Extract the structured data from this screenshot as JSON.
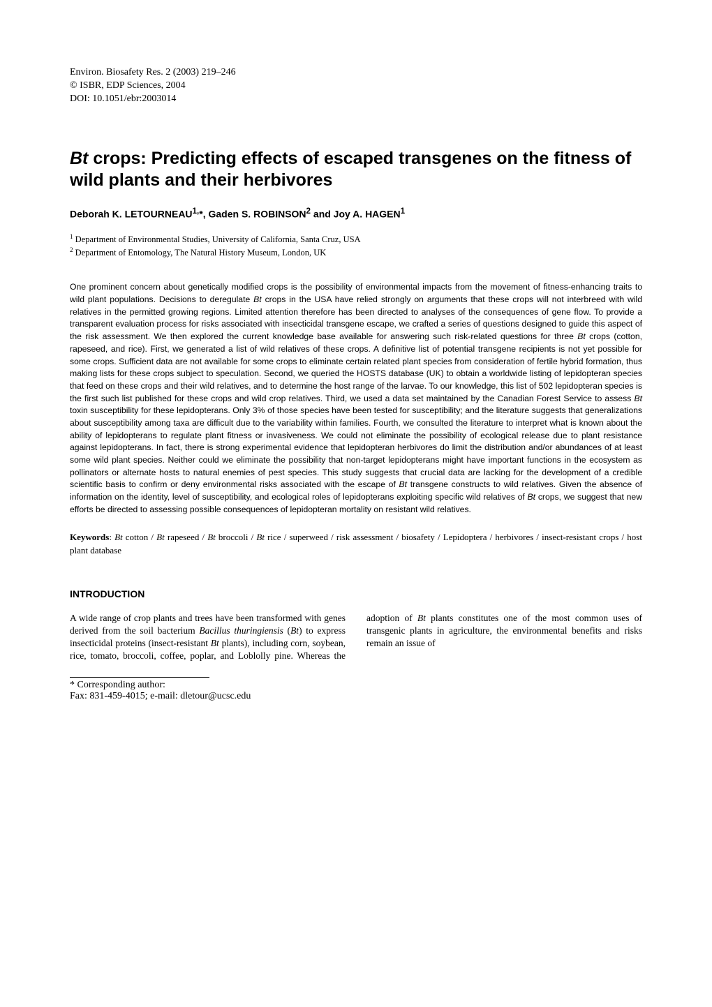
{
  "journal": {
    "line1": "Environ. Biosafety Res. 2 (2003) 219–246",
    "line2": "© ISBR, EDP Sciences, 2004",
    "line3": "DOI: 10.1051/ebr:2003014"
  },
  "title_html": "<em>Bt</em> crops: Predicting effects of escaped transgenes on the fitness of wild plants and their herbivores",
  "authors_html": "Deborah K. LETOURNEAU<sup>1,</sup>*, Gaden S. ROBINSON<sup>2</sup> and Joy A. HAGEN<sup>1</sup>",
  "affiliations": [
    {
      "num": "1",
      "text": "Department of Environmental Studies, University of California, Santa Cruz, USA"
    },
    {
      "num": "2",
      "text": "Department of Entomology, The Natural History Museum, London, UK"
    }
  ],
  "abstract_html": "One prominent concern about genetically modified crops is the possibility of environmental impacts from the movement of fitness-enhancing traits to wild plant populations. Decisions to deregulate <em>Bt</em> crops in the USA have relied strongly on arguments that these crops will not interbreed with wild relatives in the permitted growing regions. Limited attention therefore has been directed to analyses of the consequences of gene flow. To provide a transparent evaluation process for risks associated with insecticidal transgene escape, we crafted a series of questions designed to guide this aspect of the risk assessment. We then explored the current knowledge base available for answering such risk-related questions for three <em>Bt</em> crops (cotton, rapeseed, and rice). First, we generated a list of wild relatives of these crops. A definitive list of potential transgene recipients is not yet possible for some crops. Sufficient data are not available for some crops to eliminate certain related plant species from consideration of fertile hybrid formation, thus making lists for these crops subject to speculation. Second, we queried the HOSTS database (UK) to obtain a worldwide listing of lepidopteran species that feed on these crops and their wild relatives, and to determine the host range of the larvae. To our knowledge, this list of 502 lepidopteran species is the first such list published for these crops and wild crop relatives. Third, we used a data set maintained by the Canadian Forest Service to assess <em>Bt</em> toxin susceptibility for these lepidopterans. Only 3% of those species have been tested for susceptibility; and the literature suggests that generalizations about susceptibility among taxa are difficult due to the variability within families. Fourth, we consulted the literature to interpret what is known about the ability of lepidopterans to regulate plant fitness or invasiveness. We could not eliminate the possibility of ecological release due to plant resistance against lepidopterans. In fact, there is strong experimental evidence that lepidopteran herbivores do limit the distribution and/or abundances of at least some wild plant species. Neither could we eliminate the possibility that non-target lepidopterans might have important functions in the ecosystem as pollinators or alternate hosts to natural enemies of pest species. This study suggests that crucial data are lacking for the development of a credible scientific basis to confirm or deny environmental risks associated with the escape of <em>Bt</em> transgene constructs to wild relatives. Given the absence of information on the identity, level of susceptibility, and ecological roles of lepidopterans exploiting specific wild relatives of <em>Bt</em> crops, we suggest that new efforts be directed to assessing possible consequences of lepidopteran mortality on resistant wild relatives.",
  "keywords": {
    "label": "Keywords",
    "text_html": "<em>Bt</em> cotton / <em>Bt</em> rapeseed / <em>Bt</em> broccoli / <em>Bt</em> rice / superweed / risk assessment / biosafety / Lepidoptera / herbivores / insect-resistant crops / host plant database"
  },
  "section_heading": "INTRODUCTION",
  "intro_html": "A wide range of crop plants and trees have been transformed with genes derived from the soil bacterium <em>Bacillus thuringiensis</em> (<em>Bt</em>) to express insecticidal proteins (insect-resistant <em>Bt</em> plants), including corn, soybean, rice, tomato, broccoli, coffee, poplar, and Loblolly pine. Whereas the adoption of <em>Bt</em> plants constitutes one of the most common uses of transgenic plants in agriculture, the environmental benefits and risks remain an issue of",
  "footnotes": {
    "corresponding": "* Corresponding author:",
    "contact": "Fax: 831-459-4015; e-mail: dletour@ucsc.edu"
  }
}
